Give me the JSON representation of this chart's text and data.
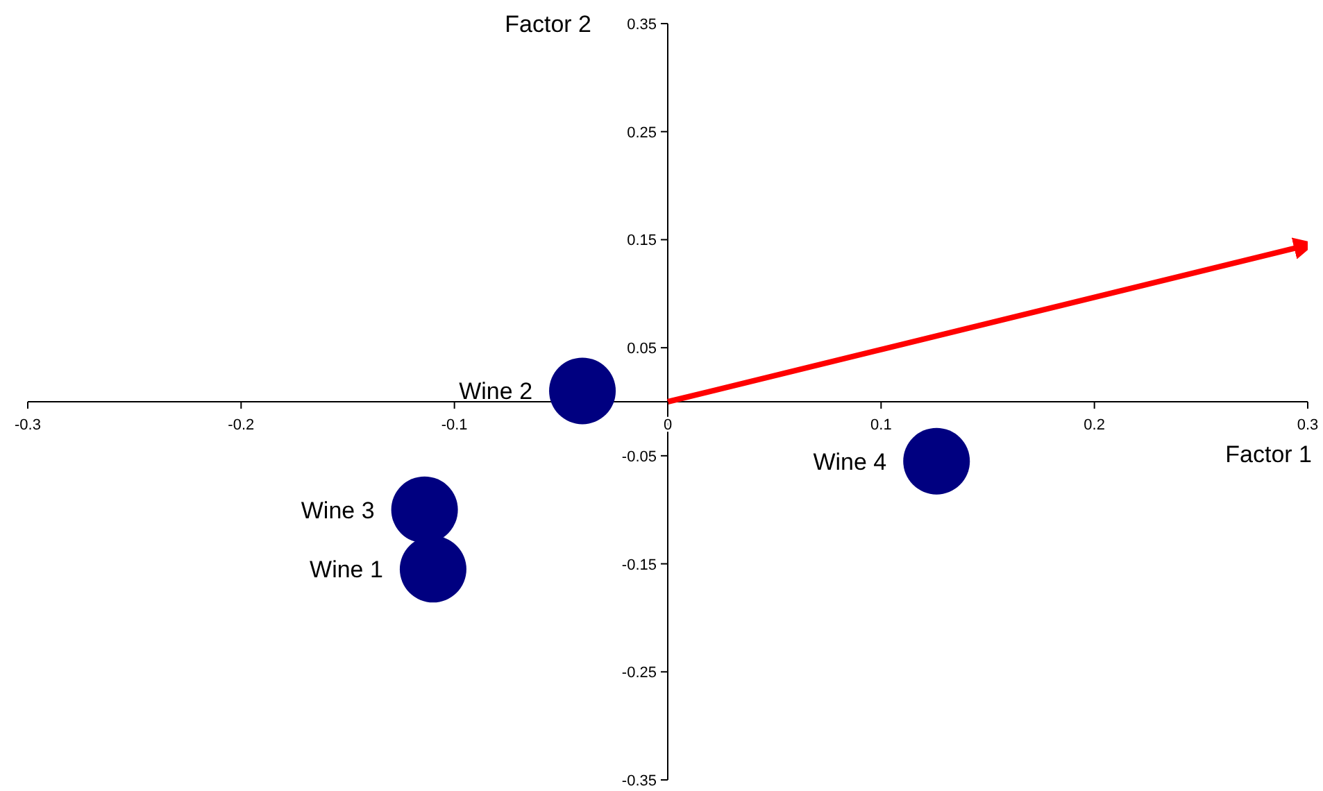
{
  "chart_data": {
    "type": "scatter",
    "xlabel": "Factor 1",
    "ylabel": "Factor 2",
    "marker": "circle",
    "xlim": [
      -0.3,
      0.3
    ],
    "xticks": [
      -0.3,
      -0.2,
      -0.1,
      0,
      0.1,
      0.2,
      0.3
    ],
    "ylim": [
      -0.35,
      0.35
    ],
    "yticks": [
      -0.35,
      -0.25,
      -0.15,
      -0.05,
      0.05,
      0.15,
      0.25,
      0.35
    ],
    "series": [
      {
        "name": "Wine 1",
        "color": "#000080",
        "x": [
          -0.11
        ],
        "values": [
          -0.155
        ]
      },
      {
        "name": "Wine 2",
        "color": "#000080",
        "x": [
          -0.04
        ],
        "values": [
          0.01
        ]
      },
      {
        "name": "Wine 3",
        "color": "#000080",
        "x": [
          -0.114
        ],
        "values": [
          -0.1
        ]
      },
      {
        "name": "Wine 4",
        "color": "#000080",
        "x": [
          0.126
        ],
        "values": [
          -0.055
        ]
      },
      {
        "type": "line",
        "marker": "none",
        "color": "#ff0000",
        "x": [
          0,
          0.3
        ],
        "values": [
          0,
          0.145
        ]
      }
    ]
  }
}
